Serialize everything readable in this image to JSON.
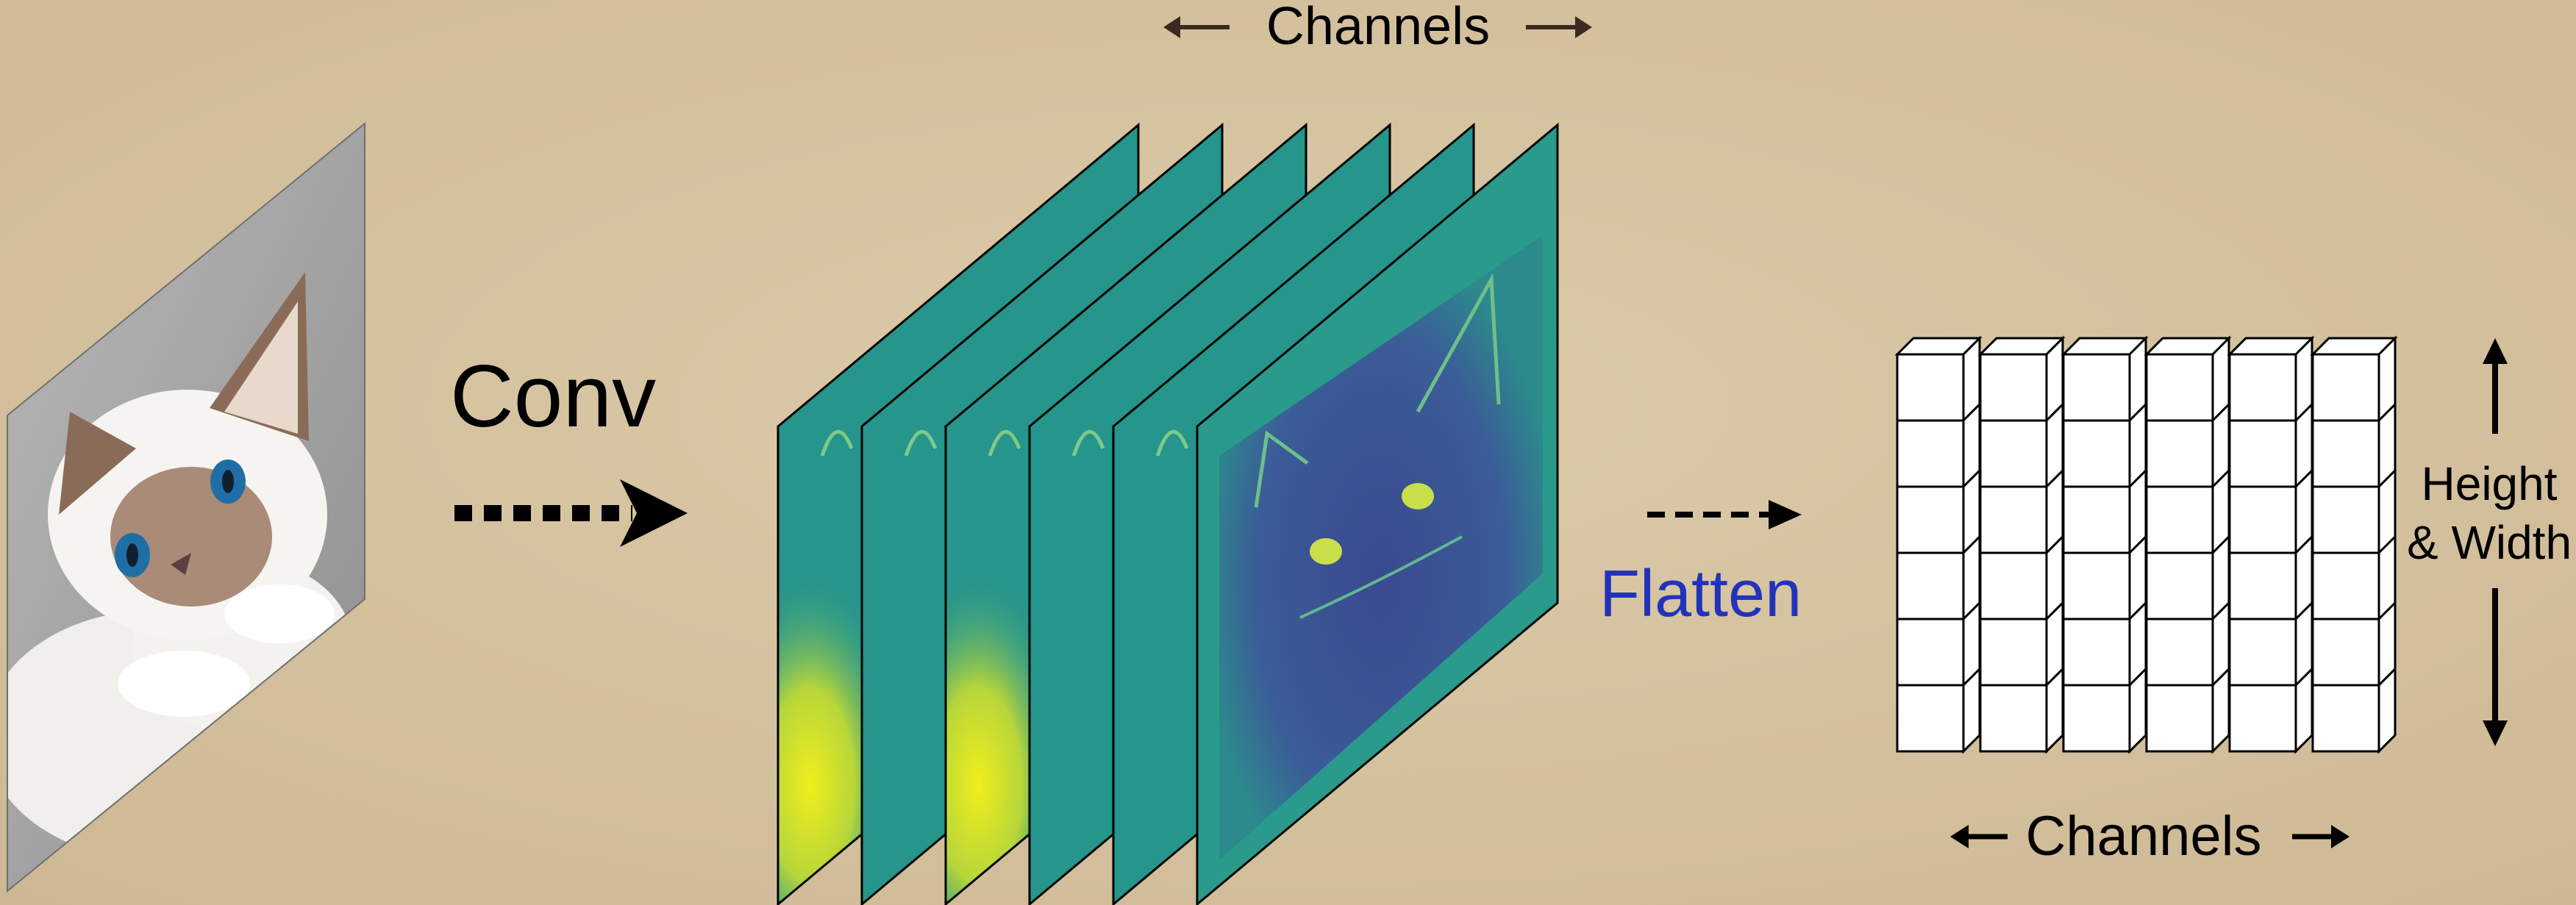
{
  "labels": {
    "conv": "Conv",
    "flatten": "Flatten",
    "channels_top": "Channels",
    "channels_bottom": "Channels",
    "height_line1": "Height",
    "height_line2": "& Width"
  },
  "colors": {
    "background": "#d8c6a5",
    "text": "#000000",
    "flatten_text": "#2233bb",
    "channels_arrow": "#3b2a22",
    "feature_map_base": "#2a9a8c",
    "feature_map_bright": "#e4e41a",
    "feature_map_dark": "#3b4d96",
    "cube_face": "#ffffff",
    "outline": "#000000"
  },
  "feature_maps": [
    {
      "name": "channel-1",
      "style": "bright"
    },
    {
      "name": "channel-2",
      "style": "edges"
    },
    {
      "name": "channel-3",
      "style": "bright"
    },
    {
      "name": "channel-4",
      "style": "edges"
    },
    {
      "name": "channel-5",
      "style": "edges"
    },
    {
      "name": "channel-6",
      "style": "dark"
    }
  ],
  "grid": {
    "rows": 6,
    "columns": 6
  },
  "icons": {
    "input_image": "cat-photo",
    "conv_arrow": "dotted-arrow-right-icon",
    "flatten_arrow": "dashed-arrow-right-icon",
    "channels_arrow": "double-arrow-horizontal-icon",
    "height_arrow": "double-arrow-vertical-icon"
  }
}
